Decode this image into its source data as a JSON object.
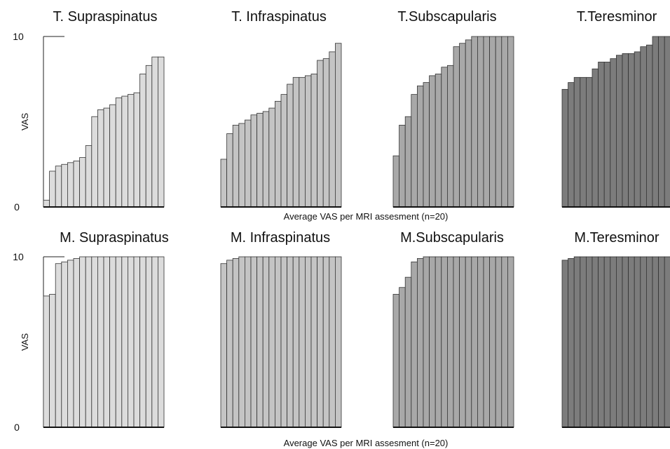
{
  "chart_data": [
    {
      "type": "bar",
      "ylabel": "VAS",
      "xlabel": "Average VAS per MRI assesment (n=20)",
      "ylim": [
        0,
        10
      ],
      "yticks": [
        "0",
        "10"
      ],
      "colors": [
        "#dcdcdc",
        "#c4c4c4",
        "#a8a8a8",
        "#7c7c7c"
      ],
      "groups": [
        {
          "name": "T. Supraspinatus",
          "values": [
            0.4,
            2.1,
            2.4,
            2.5,
            2.6,
            2.7,
            2.9,
            3.6,
            5.3,
            5.7,
            5.8,
            6.0,
            6.4,
            6.5,
            6.6,
            6.7,
            7.8,
            8.3,
            8.8,
            8.8
          ]
        },
        {
          "name": "T. Infraspinatus",
          "values": [
            2.8,
            4.3,
            4.8,
            4.9,
            5.1,
            5.4,
            5.5,
            5.6,
            5.8,
            6.2,
            6.6,
            7.2,
            7.6,
            7.6,
            7.7,
            7.8,
            8.6,
            8.7,
            9.1,
            9.6
          ]
        },
        {
          "name": "T.Subscapularis",
          "values": [
            3.0,
            4.8,
            5.3,
            6.6,
            7.1,
            7.3,
            7.7,
            7.8,
            8.2,
            8.3,
            9.4,
            9.6,
            9.8,
            10,
            10,
            10,
            10,
            10,
            10,
            10
          ]
        },
        {
          "name": "T.Teresminor",
          "values": [
            6.9,
            7.3,
            7.6,
            7.6,
            7.6,
            8.1,
            8.5,
            8.5,
            8.7,
            8.9,
            9.0,
            9.0,
            9.1,
            9.4,
            9.5,
            10,
            10,
            10,
            10,
            10
          ]
        }
      ]
    },
    {
      "type": "bar",
      "ylabel": "VAS",
      "xlabel": "Average VAS per MRI assesment (n=20)",
      "ylim": [
        0,
        10
      ],
      "yticks": [
        "0",
        "10"
      ],
      "colors": [
        "#dcdcdc",
        "#c4c4c4",
        "#a8a8a8",
        "#7c7c7c"
      ],
      "groups": [
        {
          "name": "M. Supraspinatus",
          "values": [
            7.7,
            7.8,
            9.6,
            9.7,
            9.8,
            9.9,
            10,
            10,
            10,
            10,
            10,
            10,
            10,
            10,
            10,
            10,
            10,
            10,
            10,
            10
          ]
        },
        {
          "name": "M. Infraspinatus",
          "values": [
            9.6,
            9.8,
            9.9,
            10,
            10,
            10,
            10,
            10,
            10,
            10,
            10,
            10,
            10,
            10,
            10,
            10,
            10,
            10,
            10,
            10
          ]
        },
        {
          "name": "M.Subscapularis",
          "values": [
            7.8,
            8.2,
            8.8,
            9.7,
            9.9,
            10,
            10,
            10,
            10,
            10,
            10,
            10,
            10,
            10,
            10,
            10,
            10,
            10,
            10,
            10
          ]
        },
        {
          "name": "M.Teresminor",
          "values": [
            9.8,
            9.9,
            10,
            10,
            10,
            10,
            10,
            10,
            10,
            10,
            10,
            10,
            10,
            10,
            10,
            10,
            10,
            10,
            10,
            10
          ]
        }
      ]
    }
  ]
}
